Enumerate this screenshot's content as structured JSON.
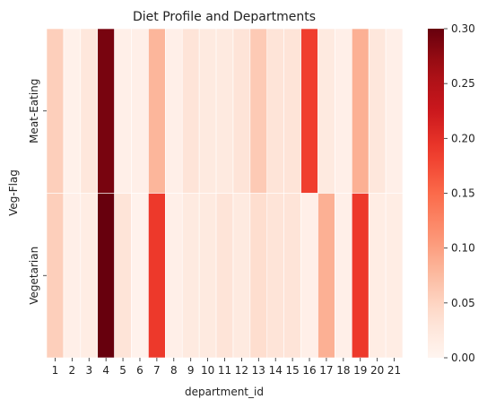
{
  "chart_data": {
    "type": "heatmap",
    "title": "Diet Profile and Departments",
    "xlabel": "department_id",
    "ylabel": "Veg-Flag",
    "x": [
      "1",
      "2",
      "3",
      "4",
      "5",
      "6",
      "7",
      "8",
      "9",
      "10",
      "11",
      "12",
      "13",
      "14",
      "15",
      "16",
      "17",
      "18",
      "19",
      "20",
      "21"
    ],
    "y": [
      "Meat-Eating",
      "Vegetarian"
    ],
    "values": [
      [
        0.055,
        0.008,
        0.025,
        0.29,
        0.01,
        0.01,
        0.08,
        0.01,
        0.03,
        0.02,
        0.02,
        0.03,
        0.06,
        0.03,
        0.03,
        0.185,
        0.02,
        0.01,
        0.085,
        0.025,
        0.01
      ],
      [
        0.055,
        0.01,
        0.015,
        0.305,
        0.03,
        0.005,
        0.19,
        0.01,
        0.02,
        0.02,
        0.03,
        0.02,
        0.04,
        0.03,
        0.03,
        0.01,
        0.085,
        0.01,
        0.19,
        0.015,
        0.015
      ]
    ],
    "colorbar": {
      "min": 0.0,
      "max": 0.3,
      "ticks": [
        "0.00",
        "0.05",
        "0.10",
        "0.15",
        "0.20",
        "0.25",
        "0.30"
      ],
      "colormap": "Reds"
    }
  }
}
